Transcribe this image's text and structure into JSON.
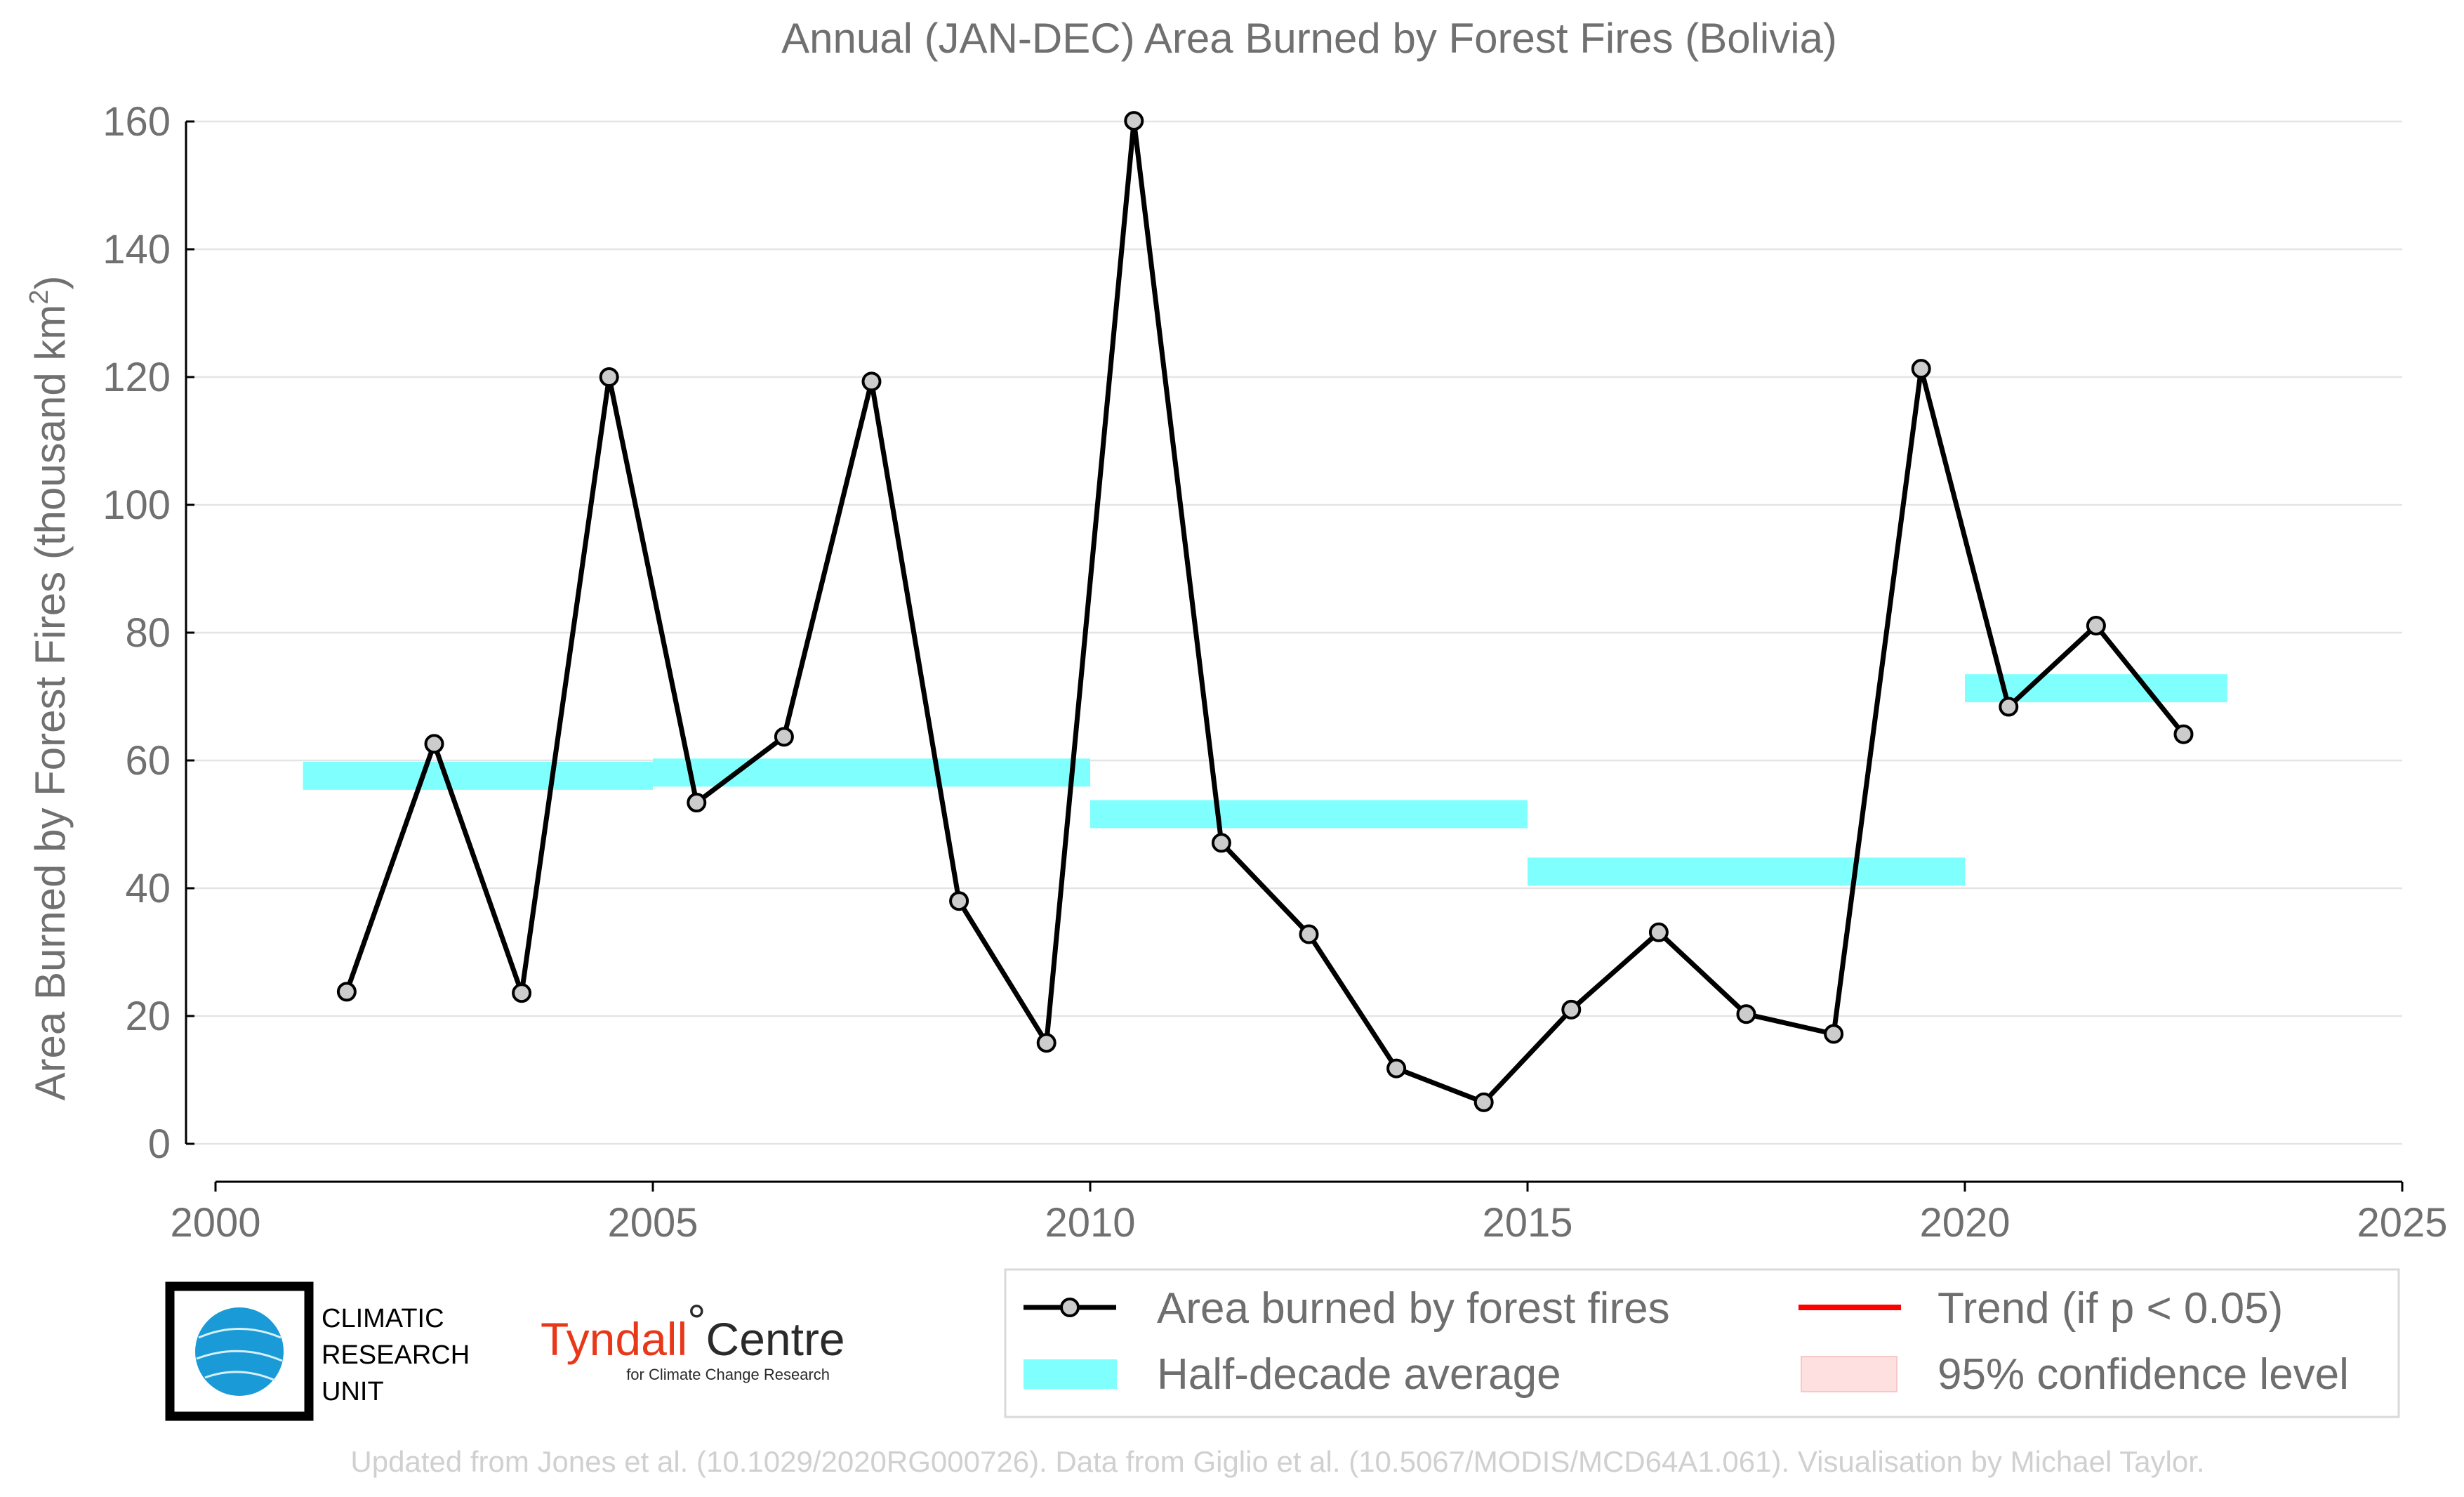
{
  "chart_data": {
    "type": "line",
    "title": "Annual (JAN-DEC) Area Burned by Forest Fires (Bolivia)",
    "ylabel": "Area Burned by Forest Fires (thousand km",
    "ylabel_superscript": "2",
    "ylabel_close": ")",
    "xlim": [
      2000,
      2025
    ],
    "ylim": [
      0,
      160
    ],
    "x_ticks": [
      2000,
      2005,
      2010,
      2015,
      2020,
      2025
    ],
    "y_ticks": [
      0,
      20,
      40,
      60,
      80,
      100,
      120,
      140,
      160
    ],
    "grid": "horizontal",
    "legend_position": "bottom-right",
    "series": [
      {
        "name": "Area burned by forest fires",
        "type": "line-with-markers",
        "color": "#000000",
        "marker_fill": "#cccccc",
        "x": [
          2001.5,
          2002.5,
          2003.5,
          2004.5,
          2005.5,
          2006.5,
          2007.5,
          2008.5,
          2009.5,
          2010.5,
          2011.5,
          2012.5,
          2013.5,
          2014.5,
          2015.5,
          2016.5,
          2017.5,
          2018.5,
          2019.5,
          2020.5,
          2021.5,
          2022.5
        ],
        "y": [
          23.8,
          62.6,
          23.6,
          120.0,
          53.4,
          63.7,
          119.3,
          38.0,
          15.8,
          160.1,
          47.1,
          32.8,
          11.8,
          6.5,
          21.0,
          33.1,
          20.3,
          17.2,
          121.3,
          68.4,
          81.1,
          64.1
        ]
      },
      {
        "name": "Half-decade average",
        "type": "bands",
        "color": "#80ffff",
        "bands": [
          {
            "x0": 2001,
            "x1": 2005,
            "y": 57.6
          },
          {
            "x0": 2005,
            "x1": 2010,
            "y": 58.1
          },
          {
            "x0": 2010,
            "x1": 2015,
            "y": 51.6
          },
          {
            "x0": 2015,
            "x1": 2020,
            "y": 42.6
          },
          {
            "x0": 2020,
            "x1": 2023,
            "y": 71.3
          }
        ]
      },
      {
        "name": "Trend (if p < 0.05)",
        "type": "legend-only",
        "color": "#ff0000"
      },
      {
        "name": "95% confidence level",
        "type": "legend-only",
        "color": "#ffe0e0"
      }
    ]
  },
  "logos": {
    "cru": [
      "CLIMATIC",
      "RESEARCH",
      "UNIT"
    ],
    "tyndall_name": "Tyndall",
    "tyndall_degree": "°",
    "tyndall_centre": "Centre",
    "tyndall_sub": "for Climate Change Research"
  },
  "footer": "Updated from Jones et al. (10.1029/2020RG000726). Data from Giglio et al. (10.5067/MODIS/MCD64A1.061). Visualisation by Michael Taylor."
}
